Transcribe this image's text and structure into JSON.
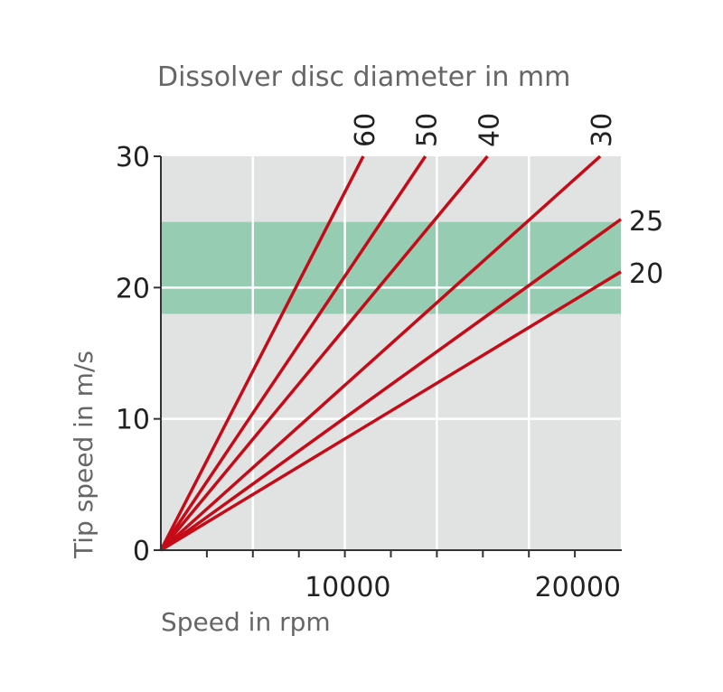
{
  "chart_data": {
    "type": "line",
    "title": "Dissolver disc diameter  in mm",
    "xlabel": "Speed in rpm",
    "ylabel": "Tip speed in m/s",
    "xlim": [
      0,
      20000
    ],
    "ylim": [
      0,
      30
    ],
    "x_tick_labels": [
      {
        "value": 10000,
        "label": "10000"
      },
      {
        "value": 20000,
        "label": "20000"
      }
    ],
    "y_ticks": [
      0,
      10,
      20,
      30
    ],
    "x_gridlines": [
      4000,
      8000,
      12000,
      16000
    ],
    "x_minor_ticks": [
      2000,
      4000,
      6000,
      8000,
      10000,
      12000,
      14000,
      16000,
      18000
    ],
    "grid": true,
    "highlight_band": {
      "y_from": 18,
      "y_to": 25,
      "color": "#96ccb1"
    },
    "colors": {
      "plot_background": "#e1e2e2",
      "line": "#c50b18",
      "grid": "#ffffff"
    },
    "series": [
      {
        "name": "60",
        "label_position": "top",
        "x": [
          0,
          8800
        ],
        "y": [
          0,
          30
        ]
      },
      {
        "name": "50",
        "label_position": "top",
        "x": [
          0,
          11500
        ],
        "y": [
          0,
          30
        ]
      },
      {
        "name": "40",
        "label_position": "top",
        "x": [
          0,
          14200
        ],
        "y": [
          0,
          30
        ]
      },
      {
        "name": "30",
        "label_position": "top",
        "x": [
          0,
          19100
        ],
        "y": [
          0,
          30
        ]
      },
      {
        "name": "25",
        "label_position": "right",
        "x": [
          0,
          20000
        ],
        "y": [
          0,
          25.2
        ]
      },
      {
        "name": "20",
        "label_position": "right",
        "x": [
          0,
          20000
        ],
        "y": [
          0,
          21.2
        ]
      }
    ]
  }
}
